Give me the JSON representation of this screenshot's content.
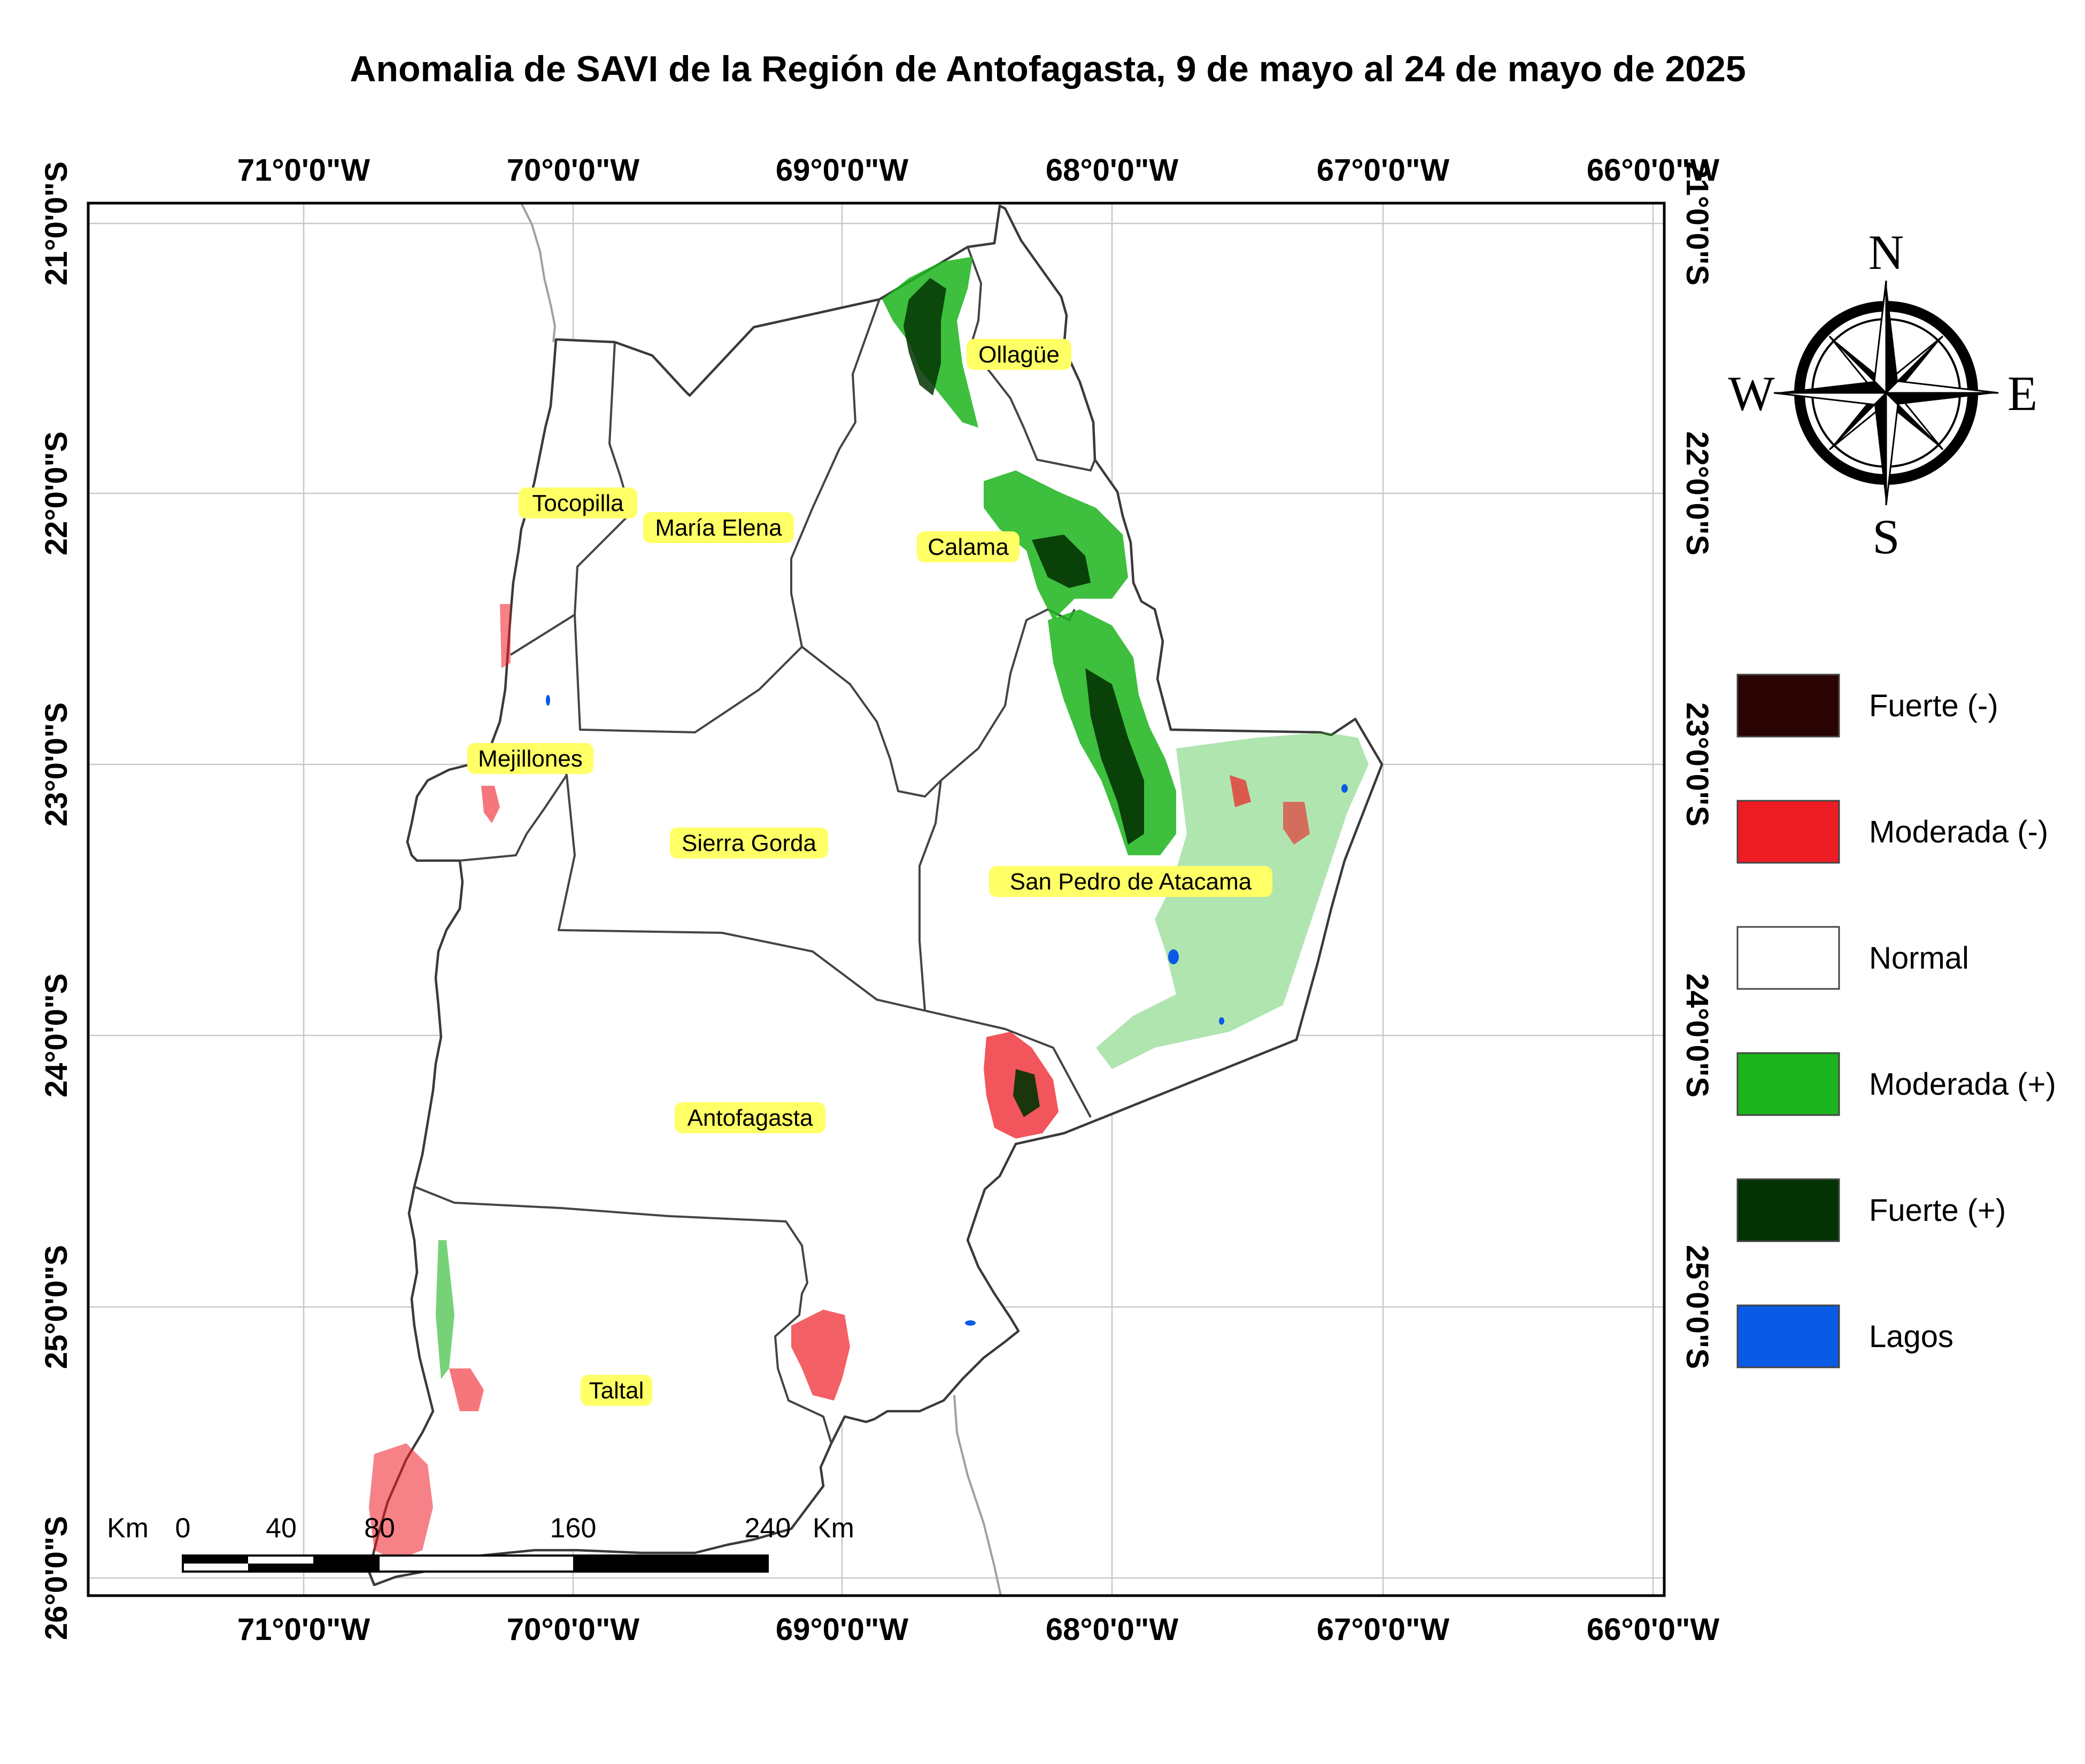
{
  "title": "Anomalia de SAVI de la Región de Antofagasta, 9 de mayo al 24 de mayo de 2025",
  "axes": {
    "longitude_labels": [
      "71°0'0\"W",
      "70°0'0\"W",
      "69°0'0\"W",
      "68°0'0\"W",
      "67°0'0\"W",
      "66°0'0\"W"
    ],
    "latitude_labels": [
      "21°0'0\"S",
      "22°0'0\"S",
      "23°0'0\"S",
      "24°0'0\"S",
      "25°0'0\"S",
      "26°0'0\"S"
    ]
  },
  "communes": [
    {
      "name": "Ollagüe"
    },
    {
      "name": "Tocopilla"
    },
    {
      "name": "María Elena"
    },
    {
      "name": "Calama"
    },
    {
      "name": "Mejillones"
    },
    {
      "name": "Sierra Gorda"
    },
    {
      "name": "San Pedro de Atacama"
    },
    {
      "name": "Antofagasta"
    },
    {
      "name": "Taltal"
    }
  ],
  "legend": [
    {
      "label": "Fuerte (-)",
      "color": "#2a0303"
    },
    {
      "label": "Moderada (-)",
      "color": "#ee1c24"
    },
    {
      "label": "Normal",
      "color": "#ffffff"
    },
    {
      "label": "Moderada (+)",
      "color": "#1cb41c"
    },
    {
      "label": "Fuerte (+)",
      "color": "#033303"
    },
    {
      "label": "Lagos",
      "color": "#0a5ae6"
    }
  ],
  "scale_bar": {
    "unit_left": "Km",
    "unit_right": "Km",
    "ticks": [
      "0",
      "40",
      "80",
      "160",
      "240"
    ]
  },
  "compass": {
    "north": "N",
    "south": "S",
    "east": "E",
    "west": "W"
  },
  "colors": {
    "strong_negative": "#2a0303",
    "moderate_negative": "#ee1c24",
    "moderate_positive": "#1cb41c",
    "strong_positive": "#033303",
    "lakes": "#0a5ae6",
    "label_highlight": "#ffff66"
  }
}
